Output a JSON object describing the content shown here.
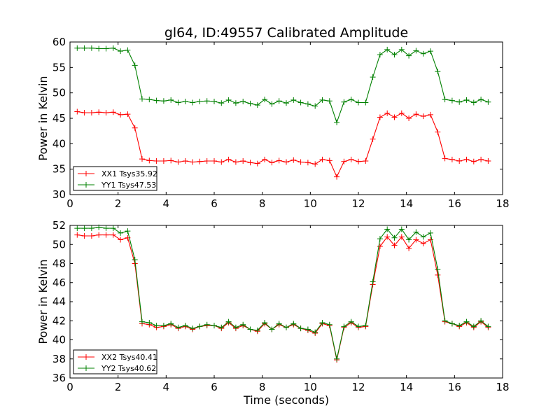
{
  "figure": {
    "title": "gl64, ID:49557 Calibrated Amplitude",
    "xlabel": "Time (seconds)"
  },
  "chart_data": [
    {
      "type": "line",
      "title": "gl64, ID:49557 Calibrated Amplitude",
      "xlabel": "",
      "ylabel": "Power in Kelvin",
      "xlim": [
        0,
        18
      ],
      "ylim": [
        30,
        60
      ],
      "xticks": [
        0,
        2,
        4,
        6,
        8,
        10,
        12,
        14,
        16,
        18
      ],
      "yticks": [
        30,
        35,
        40,
        45,
        50,
        55,
        60
      ],
      "grid": false,
      "legend_position": "lower-left",
      "x": [
        0.3,
        0.6,
        0.9,
        1.2,
        1.5,
        1.8,
        2.1,
        2.4,
        2.7,
        3.0,
        3.3,
        3.6,
        3.9,
        4.2,
        4.5,
        4.8,
        5.1,
        5.4,
        5.7,
        6.0,
        6.3,
        6.6,
        6.9,
        7.2,
        7.5,
        7.8,
        8.1,
        8.4,
        8.7,
        9.0,
        9.3,
        9.6,
        9.9,
        10.2,
        10.5,
        10.8,
        11.1,
        11.4,
        11.7,
        12.0,
        12.3,
        12.6,
        12.9,
        13.2,
        13.5,
        13.8,
        14.1,
        14.4,
        14.7,
        15.0,
        15.3,
        15.6,
        15.9,
        16.2,
        16.5,
        16.8,
        17.1,
        17.4
      ],
      "series": [
        {
          "name": "XX1 Tsys35.92",
          "color": "#ff0000",
          "values": [
            46.3,
            46.1,
            46.1,
            46.2,
            46.1,
            46.2,
            45.7,
            45.8,
            43.1,
            37.0,
            36.7,
            36.6,
            36.6,
            36.7,
            36.4,
            36.6,
            36.4,
            36.5,
            36.6,
            36.6,
            36.4,
            36.9,
            36.4,
            36.6,
            36.3,
            36.1,
            36.9,
            36.3,
            36.7,
            36.4,
            36.8,
            36.4,
            36.3,
            36.0,
            36.9,
            36.7,
            33.5,
            36.5,
            36.9,
            36.5,
            36.6,
            40.9,
            45.2,
            46.0,
            45.2,
            46.0,
            45.0,
            45.8,
            45.4,
            45.7,
            42.3,
            37.1,
            36.9,
            36.6,
            36.9,
            36.5,
            36.9,
            36.6
          ]
        },
        {
          "name": "YY1 Tsys47.53",
          "color": "#008000",
          "values": [
            58.8,
            58.8,
            58.8,
            58.7,
            58.7,
            58.8,
            58.2,
            58.4,
            55.4,
            48.8,
            48.7,
            48.5,
            48.4,
            48.6,
            48.1,
            48.3,
            48.1,
            48.3,
            48.4,
            48.3,
            48.0,
            48.6,
            48.0,
            48.3,
            47.9,
            47.6,
            48.7,
            47.8,
            48.4,
            48.0,
            48.6,
            48.1,
            47.8,
            47.4,
            48.6,
            48.4,
            44.2,
            48.2,
            48.7,
            48.1,
            48.1,
            53.1,
            57.5,
            58.5,
            57.5,
            58.5,
            57.3,
            58.3,
            57.7,
            58.2,
            54.2,
            48.7,
            48.5,
            48.2,
            48.6,
            48.1,
            48.7,
            48.2
          ]
        }
      ]
    },
    {
      "type": "line",
      "title": "",
      "xlabel": "Time (seconds)",
      "ylabel": "Power in Kelvin",
      "xlim": [
        0,
        18
      ],
      "ylim": [
        36,
        52
      ],
      "xticks": [
        0,
        2,
        4,
        6,
        8,
        10,
        12,
        14,
        16,
        18
      ],
      "yticks": [
        36,
        38,
        40,
        42,
        44,
        46,
        48,
        50,
        52
      ],
      "grid": false,
      "legend_position": "lower-left",
      "x": [
        0.3,
        0.6,
        0.9,
        1.2,
        1.5,
        1.8,
        2.1,
        2.4,
        2.7,
        3.0,
        3.3,
        3.6,
        3.9,
        4.2,
        4.5,
        4.8,
        5.1,
        5.4,
        5.7,
        6.0,
        6.3,
        6.6,
        6.9,
        7.2,
        7.5,
        7.8,
        8.1,
        8.4,
        8.7,
        9.0,
        9.3,
        9.6,
        9.9,
        10.2,
        10.5,
        10.8,
        11.1,
        11.4,
        11.7,
        12.0,
        12.3,
        12.6,
        12.9,
        13.2,
        13.5,
        13.8,
        14.1,
        14.4,
        14.7,
        15.0,
        15.3,
        15.6,
        15.9,
        16.2,
        16.5,
        16.8,
        17.1,
        17.4
      ],
      "series": [
        {
          "name": "XX2 Tsys40.41",
          "color": "#ff0000",
          "values": [
            51.0,
            50.9,
            50.9,
            51.0,
            51.0,
            51.0,
            50.5,
            50.7,
            48.0,
            41.7,
            41.6,
            41.3,
            41.4,
            41.6,
            41.2,
            41.4,
            41.1,
            41.4,
            41.5,
            41.5,
            41.2,
            41.8,
            41.2,
            41.5,
            41.1,
            40.9,
            41.7,
            41.1,
            41.6,
            41.3,
            41.6,
            41.2,
            41.0,
            40.7,
            41.7,
            41.5,
            37.9,
            41.3,
            41.8,
            41.3,
            41.4,
            45.8,
            49.8,
            50.8,
            49.9,
            50.8,
            49.6,
            50.5,
            50.1,
            50.5,
            46.8,
            41.9,
            41.7,
            41.4,
            41.8,
            41.3,
            41.9,
            41.3
          ]
        },
        {
          "name": "YY2 Tsys40.62",
          "color": "#008000",
          "values": [
            51.7,
            51.7,
            51.7,
            51.8,
            51.7,
            51.7,
            51.2,
            51.4,
            48.4,
            41.9,
            41.8,
            41.5,
            41.5,
            41.7,
            41.3,
            41.5,
            41.2,
            41.4,
            41.6,
            41.5,
            41.3,
            41.9,
            41.3,
            41.6,
            41.1,
            41.0,
            41.8,
            41.1,
            41.7,
            41.3,
            41.7,
            41.2,
            41.1,
            40.8,
            41.8,
            41.6,
            38.0,
            41.4,
            41.9,
            41.4,
            41.5,
            46.1,
            50.6,
            51.6,
            50.7,
            51.6,
            50.5,
            51.3,
            50.8,
            51.2,
            47.4,
            42.0,
            41.7,
            41.5,
            41.9,
            41.4,
            42.0,
            41.4
          ]
        }
      ]
    }
  ]
}
